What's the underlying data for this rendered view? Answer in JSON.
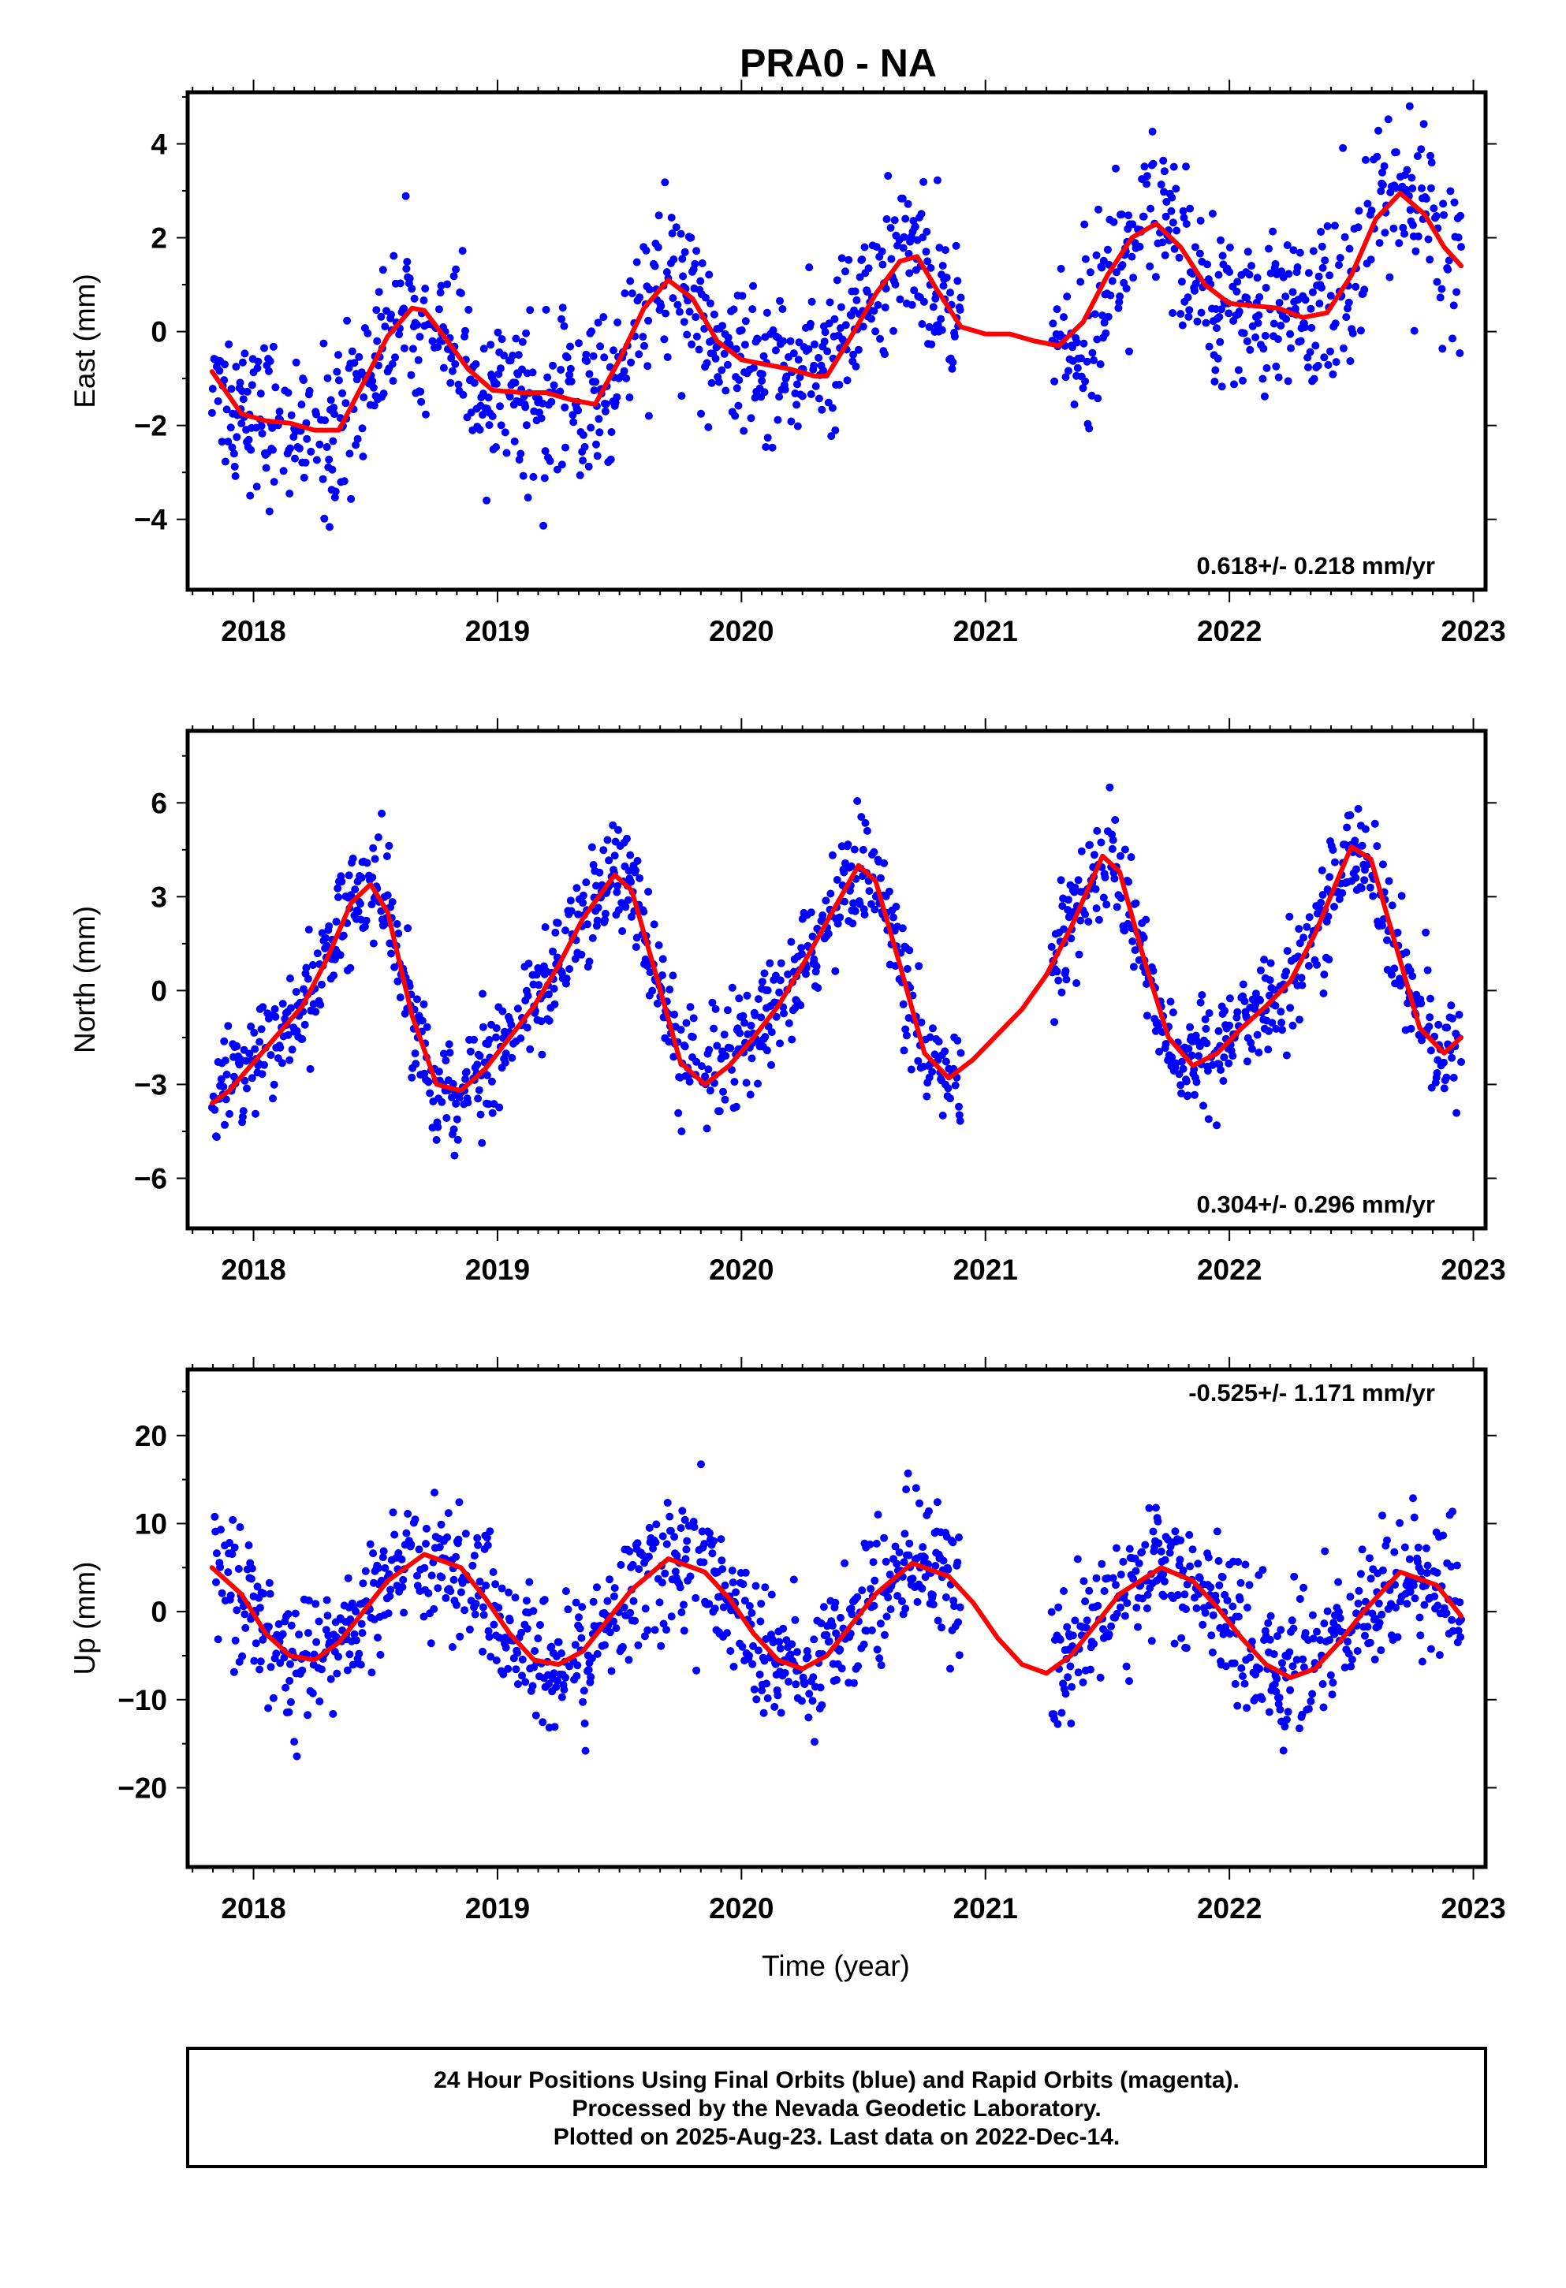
{
  "title": "PRA0 - NA",
  "x_label": "Time (year)",
  "footer": {
    "line1": "24 Hour Positions Using Final Orbits (blue) and Rapid Orbits (magenta).",
    "line2": "Processed by the Nevada Geodetic Laboratory.",
    "line3": "Plotted on 2025-Aug-23. Last data on 2022-Dec-14."
  },
  "colors": {
    "data": "#0000ff",
    "model": "#ff0000",
    "frame": "#000000"
  },
  "chart_data": [
    {
      "type": "scatter",
      "ylabel": "East (mm)",
      "rate_label": "0.618+/- 0.218 mm/yr",
      "xlim": [
        2017.73,
        2023.05
      ],
      "ylim": [
        -5.5,
        5.1
      ],
      "xticks": [
        2018,
        2019,
        2020,
        2021,
        2022,
        2023
      ],
      "yticks": [
        -4,
        -2,
        0,
        2,
        4
      ],
      "y_tick_labels": [
        "−4",
        "−2",
        "0",
        "2",
        "4"
      ],
      "data_span": [
        2017.83,
        2022.95
      ],
      "gap": [
        2020.9,
        2021.27
      ],
      "model_series": {
        "name": "",
        "x": [
          2017.83,
          2017.95,
          2018.05,
          2018.15,
          2018.25,
          2018.35,
          2018.45,
          2018.55,
          2018.65,
          2018.7,
          2018.78,
          2018.88,
          2018.98,
          2019.1,
          2019.2,
          2019.3,
          2019.4,
          2019.5,
          2019.6,
          2019.7,
          2019.8,
          2019.9,
          2020.0,
          2020.1,
          2020.2,
          2020.3,
          2020.35,
          2020.45,
          2020.55,
          2020.65,
          2020.72,
          2020.8,
          2020.9,
          2021.0,
          2021.1,
          2021.2,
          2021.3,
          2021.4,
          2021.5,
          2021.6,
          2021.7,
          2021.8,
          2021.9,
          2022.0,
          2022.1,
          2022.2,
          2022.3,
          2022.4,
          2022.5,
          2022.6,
          2022.7,
          2022.8,
          2022.88,
          2022.95
        ],
        "y": [
          -0.85,
          -1.75,
          -1.9,
          -1.95,
          -2.1,
          -2.1,
          -1.1,
          -0.1,
          0.5,
          0.45,
          -0.1,
          -0.8,
          -1.25,
          -1.3,
          -1.3,
          -1.45,
          -1.55,
          -0.6,
          0.5,
          1.1,
          0.7,
          -0.2,
          -0.6,
          -0.7,
          -0.8,
          -0.95,
          -0.95,
          -0.1,
          0.8,
          1.5,
          1.6,
          0.9,
          0.1,
          -0.05,
          -0.05,
          -0.2,
          -0.3,
          0.2,
          1.2,
          2.0,
          2.3,
          1.8,
          1.0,
          0.6,
          0.55,
          0.5,
          0.3,
          0.4,
          1.2,
          2.4,
          2.95,
          2.5,
          1.8,
          1.4
        ]
      },
      "observations": {
        "count": 1250,
        "note": "scatter of daily positions"
      }
    },
    {
      "type": "scatter",
      "ylabel": "North (mm)",
      "rate_label": "0.304+/- 0.296 mm/yr",
      "xlim": [
        2017.73,
        2023.05
      ],
      "ylim": [
        -7.6,
        8.3
      ],
      "xticks": [
        2018,
        2019,
        2020,
        2021,
        2022,
        2023
      ],
      "yticks": [
        -6,
        -3,
        0,
        3,
        6
      ],
      "y_tick_labels": [
        "−6",
        "−3",
        "0",
        "3",
        "6"
      ],
      "data_span": [
        2017.83,
        2022.95
      ],
      "gap": [
        2020.9,
        2021.27
      ],
      "model_series": {
        "name": "",
        "x": [
          2017.83,
          2017.9,
          2018.0,
          2018.1,
          2018.2,
          2018.3,
          2018.4,
          2018.48,
          2018.55,
          2018.65,
          2018.75,
          2018.85,
          2018.95,
          2019.05,
          2019.15,
          2019.25,
          2019.35,
          2019.48,
          2019.55,
          2019.65,
          2019.75,
          2019.85,
          2019.95,
          2020.05,
          2020.15,
          2020.25,
          2020.35,
          2020.48,
          2020.55,
          2020.65,
          2020.75,
          2020.85,
          2020.95,
          2021.05,
          2021.15,
          2021.25,
          2021.35,
          2021.48,
          2021.55,
          2021.65,
          2021.75,
          2021.85,
          2021.95,
          2022.05,
          2022.15,
          2022.25,
          2022.35,
          2022.5,
          2022.58,
          2022.68,
          2022.78,
          2022.88,
          2022.95
        ],
        "y": [
          -3.6,
          -3.2,
          -2.3,
          -1.4,
          -0.5,
          1.0,
          2.8,
          3.4,
          2.5,
          -0.8,
          -3.0,
          -3.2,
          -2.5,
          -1.5,
          -0.5,
          0.8,
          2.3,
          3.7,
          3.2,
          0.5,
          -2.3,
          -3.0,
          -2.4,
          -1.5,
          -0.5,
          0.8,
          2.2,
          4.0,
          3.5,
          0.8,
          -2.0,
          -2.8,
          -2.2,
          -1.4,
          -0.6,
          0.5,
          2.0,
          4.3,
          3.8,
          1.0,
          -1.5,
          -2.4,
          -2.0,
          -1.2,
          -0.5,
          0.3,
          1.8,
          4.6,
          4.2,
          1.5,
          -1.2,
          -2.0,
          -1.5
        ]
      },
      "observations": {
        "count": 1250,
        "note": "scatter of daily positions"
      }
    },
    {
      "type": "scatter",
      "ylabel": "Up (mm)",
      "rate_label": "-0.525+/- 1.171 mm/yr",
      "xlim": [
        2017.73,
        2023.05
      ],
      "ylim": [
        -29.0,
        27.5
      ],
      "xticks": [
        2018,
        2019,
        2020,
        2021,
        2022,
        2023
      ],
      "yticks": [
        -20,
        -10,
        0,
        10,
        20
      ],
      "y_tick_labels": [
        "−20",
        "−10",
        "0",
        "10",
        "20"
      ],
      "data_span": [
        2017.83,
        2022.95
      ],
      "gap": [
        2020.9,
        2021.27
      ],
      "model_series": {
        "name": "",
        "x": [
          2017.83,
          2017.95,
          2018.05,
          2018.15,
          2018.25,
          2018.35,
          2018.45,
          2018.55,
          2018.7,
          2018.85,
          2018.95,
          2019.05,
          2019.15,
          2019.25,
          2019.35,
          2019.45,
          2019.55,
          2019.7,
          2019.85,
          2019.95,
          2020.05,
          2020.15,
          2020.25,
          2020.35,
          2020.45,
          2020.55,
          2020.7,
          2020.85,
          2020.95,
          2021.05,
          2021.15,
          2021.25,
          2021.35,
          2021.45,
          2021.55,
          2021.72,
          2021.85,
          2021.95,
          2022.05,
          2022.15,
          2022.25,
          2022.35,
          2022.45,
          2022.55,
          2022.7,
          2022.85,
          2022.95
        ],
        "y": [
          5.0,
          2.0,
          -2.5,
          -5.0,
          -5.5,
          -3.5,
          0.0,
          3.5,
          6.5,
          5.0,
          1.5,
          -2.5,
          -5.5,
          -6.0,
          -4.5,
          -1.0,
          2.5,
          6.0,
          4.5,
          1.5,
          -2.5,
          -5.5,
          -6.5,
          -5.0,
          -1.5,
          2.0,
          5.5,
          4.0,
          1.0,
          -3.0,
          -6.0,
          -7.0,
          -5.0,
          -1.5,
          2.0,
          5.0,
          3.5,
          0.5,
          -3.0,
          -6.0,
          -7.5,
          -6.5,
          -3.5,
          0.0,
          4.5,
          3.0,
          -0.5
        ]
      },
      "observations": {
        "count": 1250,
        "note": "scatter of daily positions"
      }
    }
  ]
}
